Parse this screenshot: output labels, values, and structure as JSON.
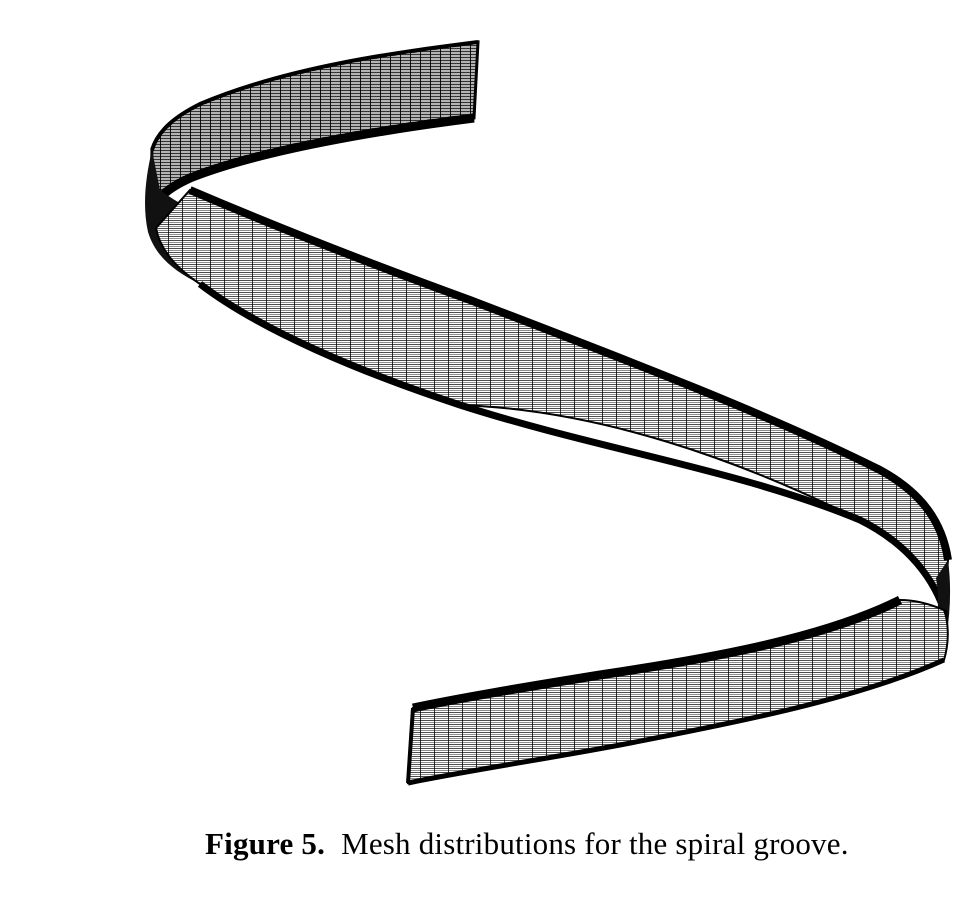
{
  "figure": {
    "caption_label": "Figure 5.",
    "caption_text": "Mesh distributions for the spiral groove.",
    "subject": "spiral-groove-mesh",
    "colors": {
      "ink": "#000000",
      "paper": "#ffffff"
    }
  }
}
